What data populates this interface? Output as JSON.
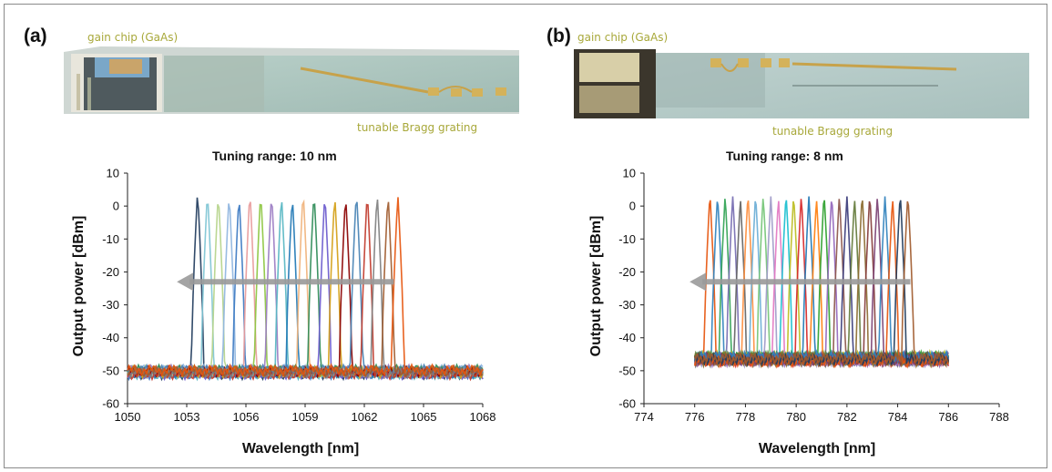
{
  "panels": [
    {
      "letter": "(a)",
      "gain_label": "gain chip (GaAs)",
      "grating_label": "tunable Bragg grating"
    },
    {
      "letter": "(b)",
      "gain_label": "gain chip (GaAs)",
      "grating_label": "tunable Bragg grating"
    }
  ],
  "chart_data": [
    {
      "type": "line",
      "title": "Tuning range: 10 nm",
      "xlabel": "Wavelength [nm]",
      "ylabel": "Output power [dBm]",
      "xlim": [
        1050,
        1068
      ],
      "ylim": [
        -60,
        10
      ],
      "xticks": [
        1050,
        1053,
        1056,
        1059,
        1062,
        1065,
        1068
      ],
      "yticks": [
        10,
        0,
        -10,
        -20,
        -30,
        -40,
        -50,
        -60
      ],
      "grid": false,
      "legend": "none",
      "peak_height_dBm": 5,
      "noise_floor_dBm": -51,
      "peak_width_nm": 0.32,
      "annotation": "arrow pointing toward shorter wavelength",
      "arrow_x": [
        1063.5,
        1052.5
      ],
      "arrow_y": -23,
      "peaks_nm": [
        1053.55,
        1054.05,
        1054.6,
        1055.15,
        1055.65,
        1056.2,
        1056.75,
        1057.3,
        1057.8,
        1058.35,
        1058.9,
        1059.45,
        1060.0,
        1060.5,
        1061.05,
        1061.6,
        1062.15,
        1062.65,
        1063.2,
        1063.7
      ],
      "series_colors": [
        "#1f3b5c",
        "#7ec4d4",
        "#b5d48a",
        "#8fb5e0",
        "#3c79c2",
        "#e89a9a",
        "#8cc63f",
        "#9a7bc2",
        "#56b6c2",
        "#1f77b4",
        "#f0b27a",
        "#2e8b57",
        "#6a5acd",
        "#d4a017",
        "#8b0000",
        "#4682b4",
        "#c0392b",
        "#7f7f7f",
        "#a05a2c",
        "#e6550d"
      ]
    },
    {
      "type": "line",
      "title": "Tuning range: 8 nm",
      "xlabel": "Wavelength [nm]",
      "ylabel": "Output power [dBm]",
      "xlim": [
        774,
        788
      ],
      "ylim": [
        -60,
        10
      ],
      "xticks": [
        774,
        776,
        778,
        780,
        782,
        784,
        786,
        788
      ],
      "yticks": [
        10,
        0,
        -10,
        -20,
        -30,
        -40,
        -50,
        -60
      ],
      "grid": false,
      "legend": "none",
      "peak_height_dBm": 4,
      "noise_floor_dBm": -47,
      "data_range_nm": [
        776,
        786
      ],
      "peak_width_nm": 0.24,
      "annotation": "arrow pointing toward shorter wavelength",
      "arrow_x": [
        784.5,
        775.8
      ],
      "arrow_y": -23,
      "peaks_nm": [
        776.6,
        776.9,
        777.2,
        777.5,
        777.8,
        778.1,
        778.4,
        778.7,
        779.0,
        779.3,
        779.6,
        779.9,
        780.2,
        780.5,
        780.8,
        781.1,
        781.4,
        781.7,
        782.0,
        782.3,
        782.6,
        782.9,
        783.2,
        783.5,
        783.8,
        784.1,
        784.4
      ],
      "series_colors": [
        "#e6550d",
        "#3182bd",
        "#31a354",
        "#756bb1",
        "#636363",
        "#fd8d3c",
        "#6baed6",
        "#74c476",
        "#9e9ac8",
        "#e377c2",
        "#17becf",
        "#bcbd22",
        "#d62728",
        "#1f77b4",
        "#ff7f0e",
        "#2ca02c",
        "#9467bd",
        "#8c564b",
        "#393b79",
        "#637939",
        "#8c6d31",
        "#843c39",
        "#7b4173",
        "#3182bd",
        "#e6550d",
        "#1f3b5c",
        "#a05a2c"
      ]
    }
  ]
}
